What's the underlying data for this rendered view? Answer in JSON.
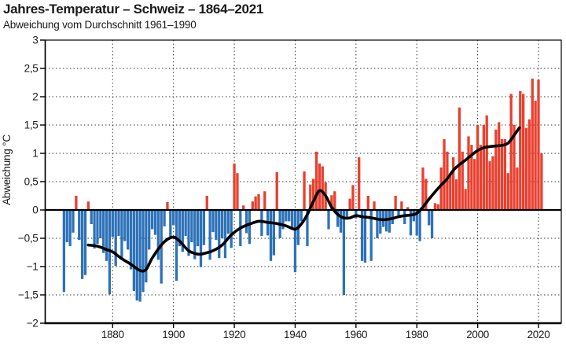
{
  "header": {
    "title": "Jahres-Temperatur – Schweiz – 1864–2021",
    "subtitle": "Abweichung vom Durchschnitt 1961–1990"
  },
  "chart_data": {
    "type": "bar",
    "title": "Jahres-Temperatur – Schweiz – 1864–2021",
    "subtitle": "Abweichung vom Durchschnitt 1961–1990",
    "ylabel": "Abweichung °C",
    "xlabel": "",
    "ylim": [
      -2,
      3
    ],
    "x_start_year": 1864,
    "x_end_year": 2021,
    "yticks": {
      "values": [
        3,
        2.5,
        2,
        1.5,
        1,
        0.5,
        0,
        -0.5,
        -1,
        -1.5,
        -2
      ],
      "labels": [
        "3",
        "2,5",
        "2",
        "1,5",
        "1",
        "0,5",
        "0",
        "−0,5",
        "−1",
        "−1,5",
        "−2"
      ]
    },
    "xticks": {
      "values": [
        1880,
        1900,
        1920,
        1940,
        1960,
        1980,
        2000,
        2020
      ],
      "labels": [
        "1880",
        "1900",
        "1920",
        "1940",
        "1960",
        "1980",
        "2000",
        "2020"
      ]
    },
    "grid": "dotted at every 0.5 °C and every 20 years, solid zero line",
    "legend": "none",
    "series": [
      {
        "name": "Jahres-Abweichung",
        "unit": "°C",
        "values": [
          -1.45,
          -0.57,
          -0.64,
          -0.4,
          0.25,
          -0.53,
          -1.22,
          -1.15,
          0.15,
          -0.25,
          -0.68,
          -0.6,
          -0.5,
          -0.76,
          -0.9,
          -1.49,
          -0.48,
          -0.99,
          -0.46,
          -0.85,
          -0.55,
          -0.7,
          -1.05,
          -1.43,
          -1.6,
          -1.62,
          -1.45,
          -1.28,
          -0.7,
          -0.34,
          -0.44,
          -0.88,
          -1.3,
          -0.29,
          0.14,
          -0.5,
          -0.27,
          -1.25,
          -0.64,
          -0.74,
          -0.46,
          -0.81,
          -0.57,
          -0.87,
          -0.64,
          -1.01,
          -0.62,
          0.25,
          -0.88,
          -0.39,
          -0.53,
          -0.85,
          -0.5,
          -0.85,
          -0.42,
          -0.67,
          0.82,
          0.65,
          -0.64,
          0.08,
          -0.41,
          -0.6,
          0.15,
          0.24,
          0.28,
          -0.46,
          0.33,
          -0.45,
          -0.9,
          -0.8,
          0.67,
          -0.5,
          -0.34,
          -0.2,
          -0.2,
          -0.34,
          -1.1,
          -0.62,
          -0.2,
          0.68,
          -0.64,
          0.45,
          0.55,
          1.03,
          0.82,
          0.77,
          0.49,
          -0.34,
          0.26,
          0.33,
          -0.3,
          -0.4,
          -1.5,
          -0.15,
          0.2,
          0.44,
          -0.15,
          0.93,
          -0.9,
          -0.93,
          0.25,
          -0.9,
          0.15,
          -0.5,
          -0.42,
          -0.3,
          -0.38,
          -0.4,
          -0.25,
          0.25,
          -0.1,
          0.15,
          -0.25,
          0.05,
          -0.45,
          -0.2,
          -0.45,
          -0.55,
          0.75,
          0.55,
          -0.27,
          -0.5,
          0.12,
          0.1,
          0.75,
          1.25,
          1.03,
          0.65,
          0.93,
          0.54,
          1.81,
          1.03,
          0.37,
          1.3,
          1.15,
          0.9,
          1.5,
          1.15,
          1.5,
          1.67,
          0.86,
          0.95,
          1.42,
          1.55,
          1.25,
          1.25,
          0.65,
          2.05,
          1.5,
          0.75,
          2.1,
          2.05,
          1.45,
          1.6,
          2.32,
          1.93,
          2.3,
          1.0
        ]
      }
    ],
    "smoothed_line": {
      "name": "geglättete Kurve",
      "points": [
        [
          1872,
          -0.62
        ],
        [
          1875,
          -0.64
        ],
        [
          1878,
          -0.7
        ],
        [
          1880,
          -0.74
        ],
        [
          1883,
          -0.86
        ],
        [
          1886,
          -0.96
        ],
        [
          1889,
          -1.07
        ],
        [
          1891,
          -1.05
        ],
        [
          1893,
          -0.85
        ],
        [
          1896,
          -0.62
        ],
        [
          1898,
          -0.52
        ],
        [
          1900,
          -0.48
        ],
        [
          1902,
          -0.55
        ],
        [
          1905,
          -0.72
        ],
        [
          1908,
          -0.78
        ],
        [
          1910,
          -0.77
        ],
        [
          1913,
          -0.72
        ],
        [
          1916,
          -0.62
        ],
        [
          1919,
          -0.44
        ],
        [
          1922,
          -0.32
        ],
        [
          1925,
          -0.25
        ],
        [
          1928,
          -0.2
        ],
        [
          1931,
          -0.22
        ],
        [
          1934,
          -0.24
        ],
        [
          1937,
          -0.28
        ],
        [
          1940,
          -0.34
        ],
        [
          1942,
          -0.25
        ],
        [
          1944,
          -0.08
        ],
        [
          1946,
          0.15
        ],
        [
          1948,
          0.34
        ],
        [
          1950,
          0.25
        ],
        [
          1952,
          0.05
        ],
        [
          1954,
          -0.08
        ],
        [
          1956,
          -0.14
        ],
        [
          1958,
          -0.14
        ],
        [
          1960,
          -0.1
        ],
        [
          1962,
          -0.12
        ],
        [
          1964,
          -0.13
        ],
        [
          1966,
          -0.15
        ],
        [
          1968,
          -0.17
        ],
        [
          1970,
          -0.17
        ],
        [
          1972,
          -0.15
        ],
        [
          1974,
          -0.12
        ],
        [
          1976,
          -0.1
        ],
        [
          1978,
          -0.09
        ],
        [
          1980,
          -0.06
        ],
        [
          1982,
          0.05
        ],
        [
          1984,
          0.19
        ],
        [
          1986,
          0.32
        ],
        [
          1988,
          0.44
        ],
        [
          1990,
          0.55
        ],
        [
          1992,
          0.7
        ],
        [
          1994,
          0.8
        ],
        [
          1996,
          0.88
        ],
        [
          1998,
          0.97
        ],
        [
          2000,
          1.05
        ],
        [
          2002,
          1.1
        ],
        [
          2004,
          1.12
        ],
        [
          2006,
          1.13
        ],
        [
          2008,
          1.14
        ],
        [
          2010,
          1.18
        ],
        [
          2012,
          1.32
        ],
        [
          2013.7,
          1.45
        ]
      ]
    },
    "colors": {
      "positive": "#e8402f",
      "negative": "#2d72b8",
      "line": "#000000",
      "axis": "#000000",
      "grid": "#2b2b2b"
    }
  }
}
